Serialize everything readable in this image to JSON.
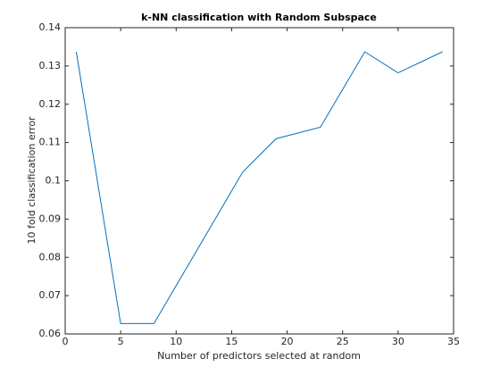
{
  "chart_data": {
    "type": "line",
    "title": "k-NN classification with Random Subspace",
    "x_label": "Number of predictors selected at random",
    "y_label": "10 fold classification error",
    "x": [
      1,
      5,
      8,
      16,
      19,
      23,
      27,
      30,
      34
    ],
    "series": [
      {
        "color": "#0072bd",
        "values": [
          0.1337,
          0.0627,
          0.0627,
          0.1023,
          0.111,
          0.114,
          0.1337,
          0.1282,
          0.1337
        ]
      }
    ],
    "xlim": [
      0,
      35
    ],
    "xticks": [
      0,
      5,
      10,
      15,
      20,
      25,
      30,
      35
    ],
    "ylim": [
      0.06,
      0.14
    ],
    "yticks": [
      0.06,
      0.07,
      0.08,
      0.09,
      0.1,
      0.11,
      0.12,
      0.13,
      0.14
    ],
    "grid": false
  }
}
